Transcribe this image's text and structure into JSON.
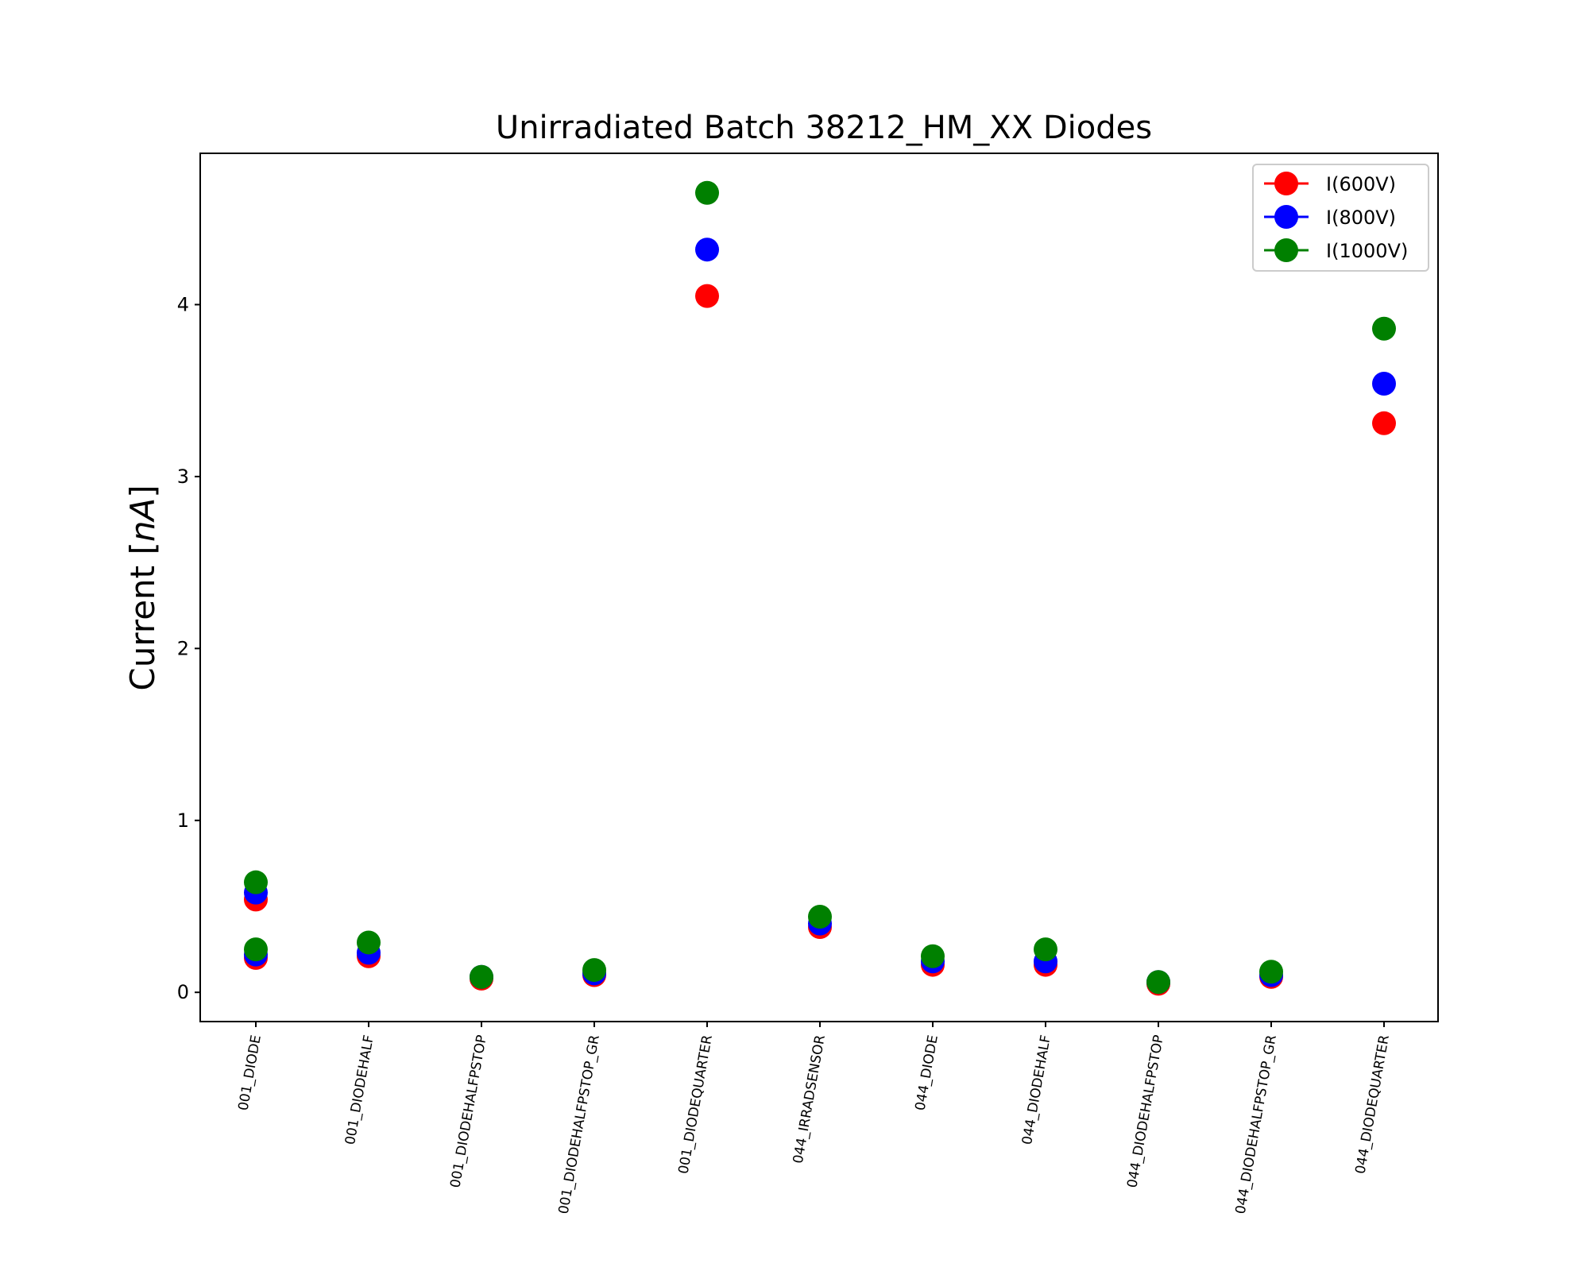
{
  "chart_data": {
    "type": "scatter",
    "title": "Unirradiated Batch 38212_HM_XX Diodes",
    "xlabel": "",
    "ylabel": "Current [",
    "ylabel_unit": "nA",
    "ylabel_close": "]",
    "ylim": [
      -0.17,
      4.88
    ],
    "yticks": [
      "0",
      "1",
      "2",
      "3",
      "4"
    ],
    "grid": false,
    "legend_position": "top-right",
    "categories": [
      "001_DIODE",
      "001_DIODEHALF",
      "001_DIODEHALFPSTOP",
      "001_DIODEHALFPSTOP_GR",
      "001_DIODEQUARTER",
      "044_IRRADSENSOR",
      "044_DIODE",
      "044_DIODEHALF",
      "044_DIODEHALFPSTOP",
      "044_DIODEHALFPSTOP_GR",
      "044_DIODEQUARTER"
    ],
    "series": [
      {
        "name": "I(600V)",
        "color": "#ff0000",
        "points": [
          {
            "x": 0,
            "y": 0.54
          },
          {
            "x": 0,
            "y": 0.2
          },
          {
            "x": 1,
            "y": 0.21
          },
          {
            "x": 2,
            "y": 0.08
          },
          {
            "x": 3,
            "y": 0.1
          },
          {
            "x": 4,
            "y": 4.05
          },
          {
            "x": 5,
            "y": 0.38
          },
          {
            "x": 6,
            "y": 0.16
          },
          {
            "x": 7,
            "y": 0.16
          },
          {
            "x": 8,
            "y": 0.05
          },
          {
            "x": 9,
            "y": 0.09
          },
          {
            "x": 10,
            "y": 3.31
          }
        ]
      },
      {
        "name": "I(800V)",
        "color": "#0000ff",
        "points": [
          {
            "x": 0,
            "y": 0.58
          },
          {
            "x": 0,
            "y": 0.22
          },
          {
            "x": 1,
            "y": 0.23
          },
          {
            "x": 2,
            "y": 0.09
          },
          {
            "x": 3,
            "y": 0.11
          },
          {
            "x": 4,
            "y": 4.32
          },
          {
            "x": 5,
            "y": 0.4
          },
          {
            "x": 6,
            "y": 0.18
          },
          {
            "x": 7,
            "y": 0.18
          },
          {
            "x": 8,
            "y": 0.06
          },
          {
            "x": 9,
            "y": 0.1
          },
          {
            "x": 10,
            "y": 3.54
          }
        ]
      },
      {
        "name": "I(1000V)",
        "color": "#008000",
        "points": [
          {
            "x": 0,
            "y": 0.64
          },
          {
            "x": 0,
            "y": 0.25
          },
          {
            "x": 1,
            "y": 0.29
          },
          {
            "x": 2,
            "y": 0.09
          },
          {
            "x": 3,
            "y": 0.13
          },
          {
            "x": 4,
            "y": 4.65
          },
          {
            "x": 5,
            "y": 0.44
          },
          {
            "x": 6,
            "y": 0.21
          },
          {
            "x": 7,
            "y": 0.25
          },
          {
            "x": 8,
            "y": 0.06
          },
          {
            "x": 9,
            "y": 0.12
          },
          {
            "x": 10,
            "y": 3.86
          }
        ]
      }
    ]
  }
}
